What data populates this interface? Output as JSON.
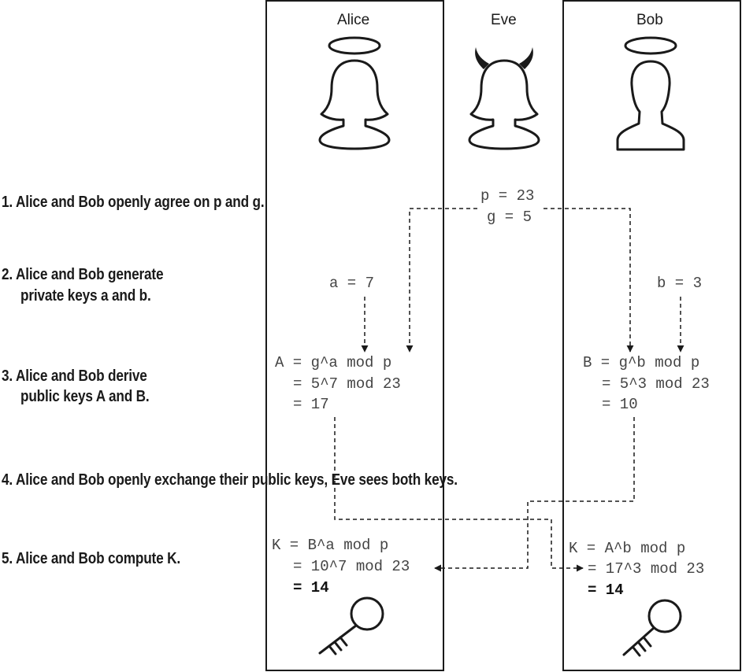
{
  "actors": {
    "alice": "Alice",
    "eve": "Eve",
    "bob": "Bob"
  },
  "steps": {
    "s1": "1. Alice and Bob openly agree on p and g.",
    "s2a": "2. Alice and Bob generate",
    "s2b": "private keys a and b.",
    "s3a": "3. Alice and Bob derive",
    "s3b": "public keys A and B.",
    "s4": "4. Alice and Bob openly exchange their public keys, Eve sees both keys.",
    "s5": "5. Alice and Bob compute K."
  },
  "shared": {
    "p": "p = 23",
    "g": "g = 5"
  },
  "alice": {
    "private": "a = 7",
    "pub1": "A = g^a mod p",
    "pub2": "= 5^7 mod 23",
    "pub3": "= 17",
    "k1": "K = B^a mod p",
    "k2": "= 10^7 mod 23",
    "k3": "= 14"
  },
  "bob": {
    "private": "b = 3",
    "pub1": "B = g^b mod p",
    "pub2": "= 5^3 mod 23",
    "pub3": "= 10",
    "k1": "K = A^b mod p",
    "k2": "= 17^3 mod 23",
    "k3": "= 14"
  },
  "colors": {
    "ink": "#1a1a1a",
    "formula": "#444444"
  },
  "icons": [
    "halo-icon",
    "alice-avatar-icon",
    "eve-avatar-icon",
    "devil-horns-icon",
    "bob-avatar-icon",
    "key-icon"
  ]
}
